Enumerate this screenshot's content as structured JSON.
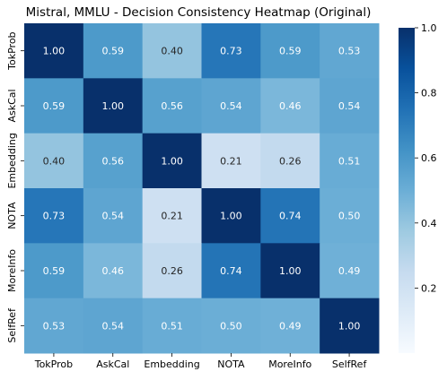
{
  "chart_data": {
    "type": "heatmap",
    "title": "Mistral, MMLU - Decision Consistency Heatmap (Original)",
    "xlabel": "",
    "ylabel": "",
    "x_categories": [
      "TokProb",
      "AskCal",
      "Embedding",
      "NOTA",
      "MoreInfo",
      "SelfRef"
    ],
    "y_categories": [
      "TokProb",
      "AskCal",
      "Embedding",
      "NOTA",
      "MoreInfo",
      "SelfRef"
    ],
    "values": [
      [
        1.0,
        0.59,
        0.4,
        0.73,
        0.59,
        0.53
      ],
      [
        0.59,
        1.0,
        0.56,
        0.54,
        0.46,
        0.54
      ],
      [
        0.4,
        0.56,
        1.0,
        0.21,
        0.26,
        0.51
      ],
      [
        0.73,
        0.54,
        0.21,
        1.0,
        0.74,
        0.5
      ],
      [
        0.59,
        0.46,
        0.26,
        0.74,
        1.0,
        0.49
      ],
      [
        0.53,
        0.54,
        0.51,
        0.5,
        0.49,
        1.0
      ]
    ],
    "cell_labels": [
      [
        "1.00",
        "0.59",
        "0.40",
        "0.73",
        "0.59",
        "0.53"
      ],
      [
        "0.59",
        "1.00",
        "0.56",
        "0.54",
        "0.46",
        "0.54"
      ],
      [
        "0.40",
        "0.56",
        "1.00",
        "0.21",
        "0.26",
        "0.51"
      ],
      [
        "0.73",
        "0.54",
        "0.21",
        "1.00",
        "0.74",
        "0.50"
      ],
      [
        "0.59",
        "0.46",
        "0.26",
        "0.74",
        "1.00",
        "0.49"
      ],
      [
        "0.53",
        "0.54",
        "0.51",
        "0.50",
        "0.49",
        "1.00"
      ]
    ],
    "colorbar": {
      "min": 0.0,
      "max": 1.0,
      "ticks": [
        0.2,
        0.4,
        0.6,
        0.8,
        1.0
      ],
      "tick_labels": [
        "0.2",
        "0.4",
        "0.6",
        "0.8",
        "1.0"
      ]
    },
    "colormap": "Blues",
    "colors": {
      "blues_scale": [
        "#f7fbff",
        "#deebf7",
        "#c6dbef",
        "#9ecae1",
        "#6baed6",
        "#4292c6",
        "#2171b5",
        "#08519c",
        "#08306b"
      ],
      "text_dark": "#262626",
      "text_light": "#ffffff"
    },
    "grid": false,
    "legend": "colorbar-right"
  }
}
